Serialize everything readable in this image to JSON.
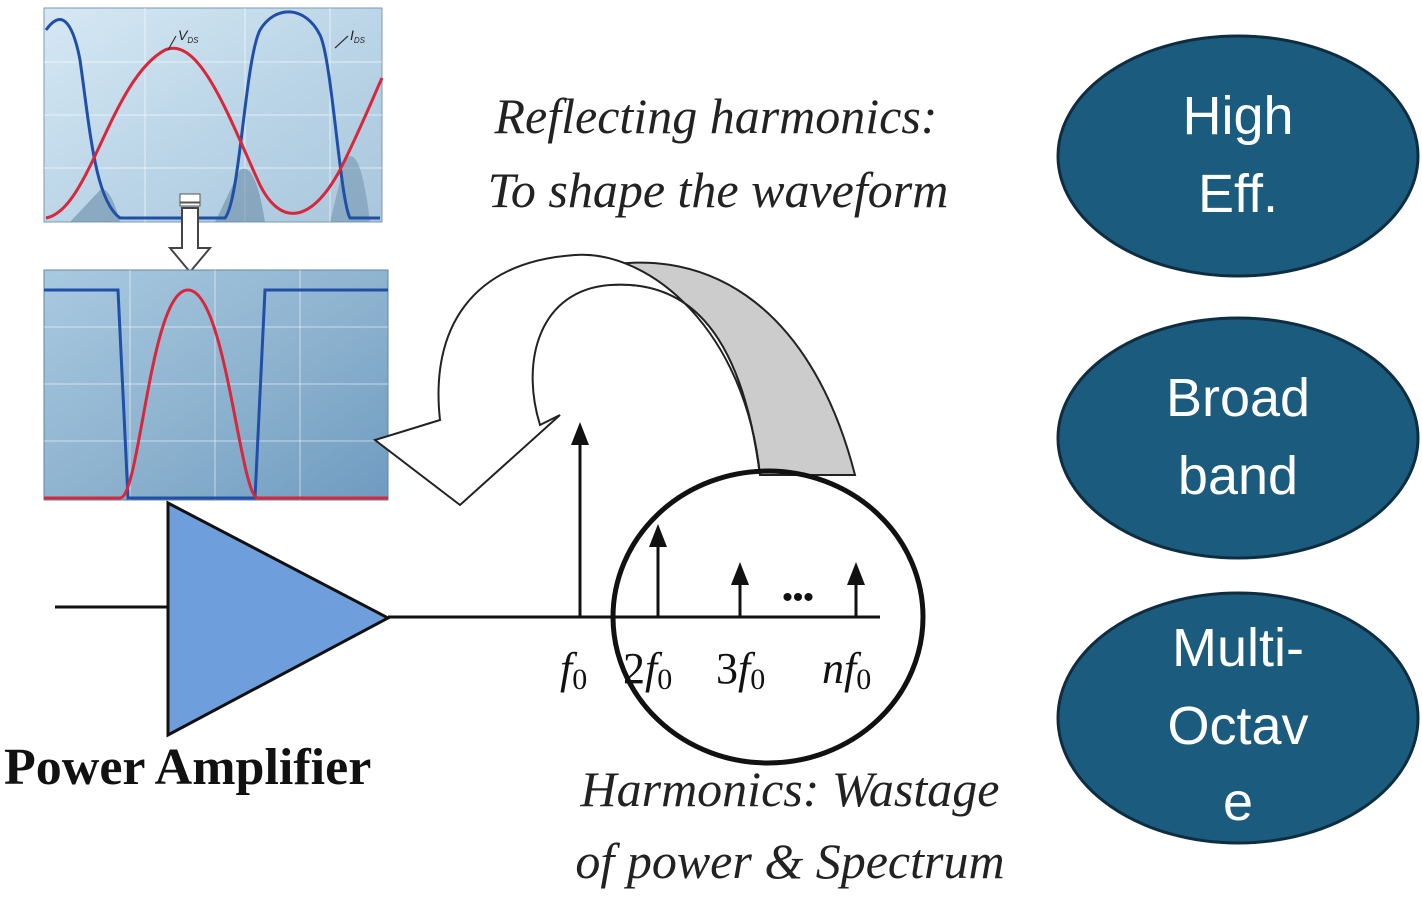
{
  "waveform_top": {
    "vds_label": "V",
    "vds_sub": "DS",
    "ids_label": "I",
    "ids_sub": "DS"
  },
  "reflect_caption": {
    "line1": "Reflecting harmonics:",
    "line2": "To shape the waveform"
  },
  "amplifier": {
    "label": "Power Amplifier"
  },
  "spectrum": {
    "f0": "f",
    "f0_sub": "0",
    "f2_coef": "2",
    "f3_coef": "3",
    "fn_coef": "n",
    "dots": "•••"
  },
  "harmonics_caption": {
    "line1": "Harmonics: Wastage",
    "line2": "of power & Spectrum"
  },
  "ovals": [
    {
      "line1": "High",
      "line2": "Eff.",
      "line3": ""
    },
    {
      "line1": "Broad",
      "line2": "band",
      "line3": ""
    },
    {
      "line1": "Multi-",
      "line2": "Octav",
      "line3": "e"
    }
  ],
  "colors": {
    "oval_fill": "#1b5b7e",
    "oval_stroke": "#0f2d40",
    "amp_fill": "#6f9edc",
    "voltage": "#d9263a",
    "current": "#1f4fa8",
    "scope_bg": "#cfe2ef"
  }
}
